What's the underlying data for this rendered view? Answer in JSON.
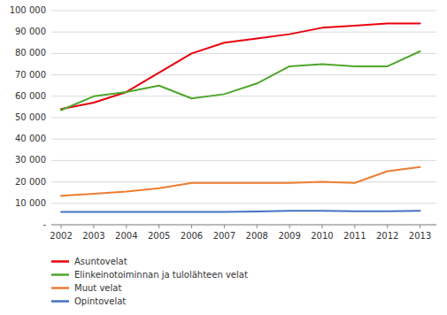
{
  "chart_data": {
    "type": "line",
    "x": [
      2002,
      2003,
      2004,
      2005,
      2006,
      2007,
      2008,
      2009,
      2010,
      2011,
      2012,
      2013
    ],
    "xlim": [
      2001.7,
      2013.5
    ],
    "xticks": [
      2002,
      2003,
      2004,
      2005,
      2006,
      2007,
      2008,
      2009,
      2010,
      2011,
      2012,
      2013
    ],
    "ylim": [
      0,
      100000
    ],
    "yticks": [
      {
        "value": 0,
        "label": "-"
      },
      {
        "value": 10000,
        "label": "10 000"
      },
      {
        "value": 20000,
        "label": "20 000"
      },
      {
        "value": 30000,
        "label": "30 000"
      },
      {
        "value": 40000,
        "label": "40 000"
      },
      {
        "value": 50000,
        "label": "50 000"
      },
      {
        "value": 60000,
        "label": "60 000"
      },
      {
        "value": 70000,
        "label": "70 000"
      },
      {
        "value": 80000,
        "label": "80 000"
      },
      {
        "value": 90000,
        "label": "90 000"
      },
      {
        "value": 100000,
        "label": "100 000"
      }
    ],
    "grid": true,
    "legend": "bottom",
    "series": [
      {
        "name": "Asuntovelat",
        "color": "#e8000d",
        "values": [
          54000,
          57000,
          62000,
          71000,
          80000,
          85000,
          87000,
          89000,
          92000,
          93000,
          94000,
          94000
        ]
      },
      {
        "name": "Elinkeinotoiminnan ja tulolähteen velat",
        "color": "#4ea72c",
        "values": [
          53500,
          60000,
          62000,
          65000,
          59000,
          61000,
          66000,
          74000,
          75000,
          74000,
          74000,
          81000
        ]
      },
      {
        "name": "Muut velat",
        "color": "#ed7d31",
        "values": [
          13500,
          14500,
          15500,
          17000,
          19500,
          19500,
          19500,
          19500,
          20000,
          19500,
          25000,
          27000
        ]
      },
      {
        "name": "Opintovelat",
        "color": "#4472c4",
        "values": [
          6000,
          6000,
          6000,
          6000,
          6000,
          6000,
          6200,
          6500,
          6500,
          6300,
          6300,
          6500
        ]
      }
    ]
  }
}
